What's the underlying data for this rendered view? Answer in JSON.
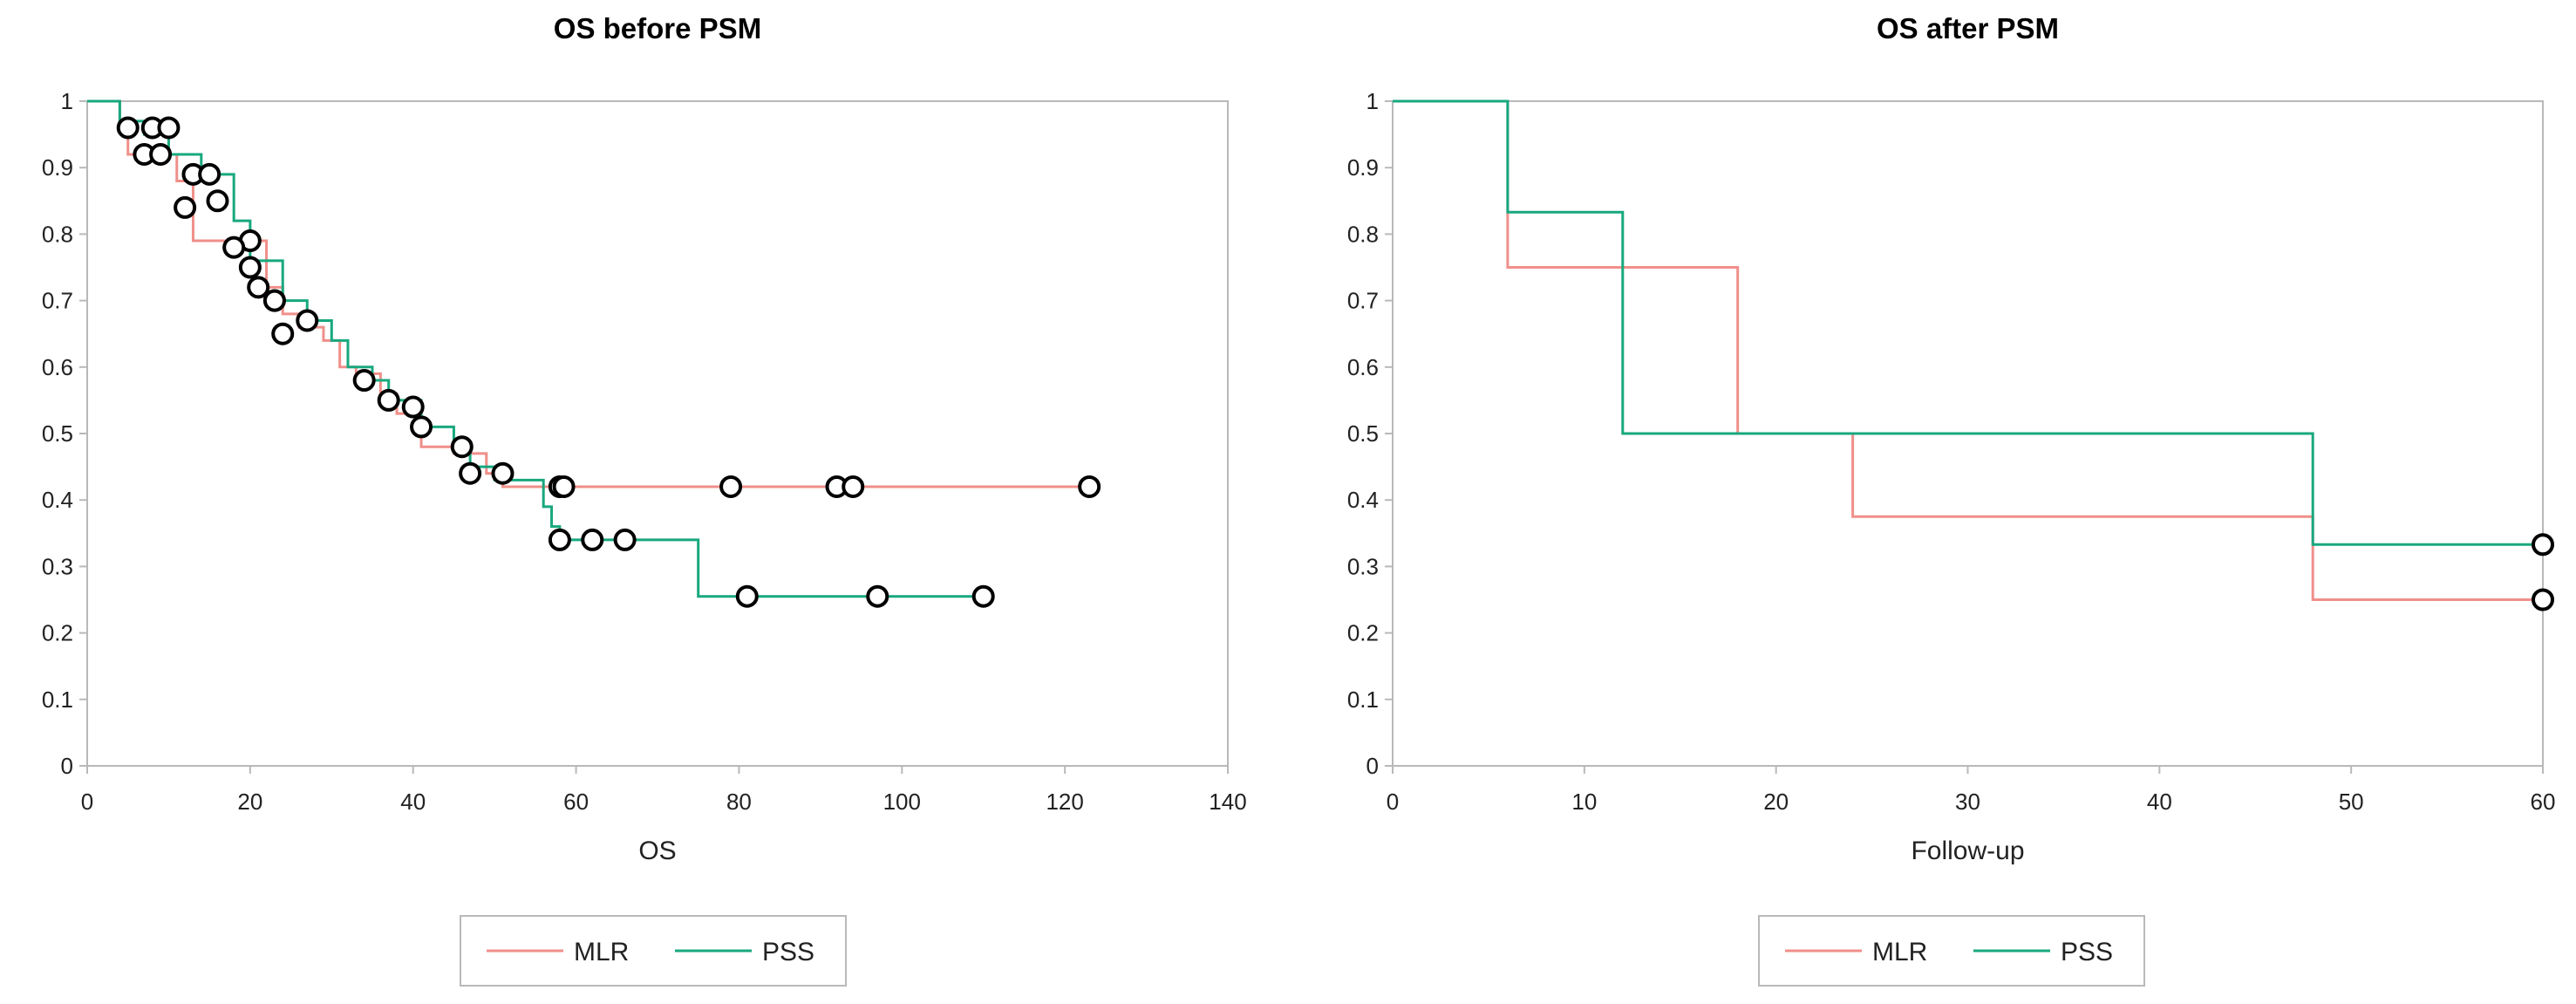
{
  "colors": {
    "MLR": "#f08f8a",
    "PSS": "#18a87e",
    "frame": "#b9b9b9",
    "marker": "#000000"
  },
  "chart_data": [
    {
      "type": "line",
      "subtype": "kaplan-meier step",
      "title": "OS before PSM",
      "xlabel": "OS",
      "ylabel": "",
      "xlim": [
        0,
        140
      ],
      "ylim": [
        0,
        1
      ],
      "x_ticks": [
        "0",
        "20",
        "40",
        "60",
        "80",
        "100",
        "120",
        "140"
      ],
      "y_ticks": [
        "0",
        "0.1",
        "0.2",
        "0.3",
        "0.4",
        "0.5",
        "0.6",
        "0.7",
        "0.8",
        "0.9",
        "1"
      ],
      "grid": false,
      "legend_position": "bottom",
      "legend": [
        "MLR",
        "PSS"
      ],
      "series": [
        {
          "name": "MLR",
          "x": [
            0,
            3,
            4,
            5,
            8,
            11,
            13,
            16,
            19,
            22,
            24,
            26,
            29,
            31,
            33,
            36,
            38,
            41,
            45,
            49,
            51,
            60,
            123
          ],
          "y": [
            1,
            1,
            0.96,
            0.92,
            0.92,
            0.88,
            0.79,
            0.79,
            0.79,
            0.72,
            0.68,
            0.66,
            0.64,
            0.6,
            0.59,
            0.56,
            0.53,
            0.48,
            0.47,
            0.44,
            0.42,
            0.42,
            0.42
          ],
          "censored_x": [
            5,
            7,
            8,
            9,
            10,
            12,
            13,
            16,
            20,
            21,
            23,
            27,
            58,
            58.5,
            79,
            92,
            94,
            123
          ],
          "censored_y": [
            0.96,
            0.92,
            0.96,
            0.92,
            0.96,
            0.84,
            0.89,
            0.85,
            0.79,
            0.72,
            0.7,
            0.67,
            0.42,
            0.42,
            0.42,
            0.42,
            0.42,
            0.42
          ]
        },
        {
          "name": "PSS",
          "x": [
            0,
            3,
            4,
            7,
            10,
            14,
            18,
            20,
            24,
            27,
            30,
            32,
            35,
            37,
            41,
            45,
            47,
            50,
            56,
            57,
            58,
            60,
            75,
            110
          ],
          "y": [
            1,
            1,
            0.97,
            0.95,
            0.92,
            0.89,
            0.82,
            0.76,
            0.7,
            0.67,
            0.64,
            0.6,
            0.58,
            0.55,
            0.51,
            0.48,
            0.45,
            0.43,
            0.39,
            0.36,
            0.34,
            0.34,
            0.255,
            0.255
          ],
          "censored_x": [
            15,
            18,
            20,
            23,
            24,
            34,
            37,
            40,
            41,
            46,
            47,
            51,
            58,
            62,
            66,
            81,
            97,
            110
          ],
          "censored_y": [
            0.89,
            0.78,
            0.75,
            0.7,
            0.65,
            0.58,
            0.55,
            0.54,
            0.51,
            0.48,
            0.44,
            0.44,
            0.34,
            0.34,
            0.34,
            0.255,
            0.255,
            0.255
          ]
        }
      ]
    },
    {
      "type": "line",
      "subtype": "kaplan-meier step",
      "title": "OS after PSM",
      "xlabel": "Follow-up",
      "ylabel": "",
      "xlim": [
        0,
        60
      ],
      "ylim": [
        0,
        1
      ],
      "x_ticks": [
        "0",
        "10",
        "20",
        "30",
        "40",
        "50",
        "60"
      ],
      "y_ticks": [
        "0",
        "0.1",
        "0.2",
        "0.3",
        "0.4",
        "0.5",
        "0.6",
        "0.7",
        "0.8",
        "0.9",
        "1"
      ],
      "grid": false,
      "legend_position": "bottom",
      "legend": [
        "MLR",
        "PSS"
      ],
      "series": [
        {
          "name": "MLR",
          "x": [
            0,
            6,
            18,
            24,
            48,
            60
          ],
          "y": [
            1,
            0.75,
            0.5,
            0.375,
            0.25,
            0.25
          ],
          "censored_x": [
            60
          ],
          "censored_y": [
            0.25
          ]
        },
        {
          "name": "PSS",
          "x": [
            0,
            6,
            12,
            48,
            60
          ],
          "y": [
            1,
            0.833,
            0.5,
            0.333,
            0.333
          ],
          "censored_x": [
            60
          ],
          "censored_y": [
            0.333
          ]
        }
      ]
    }
  ]
}
